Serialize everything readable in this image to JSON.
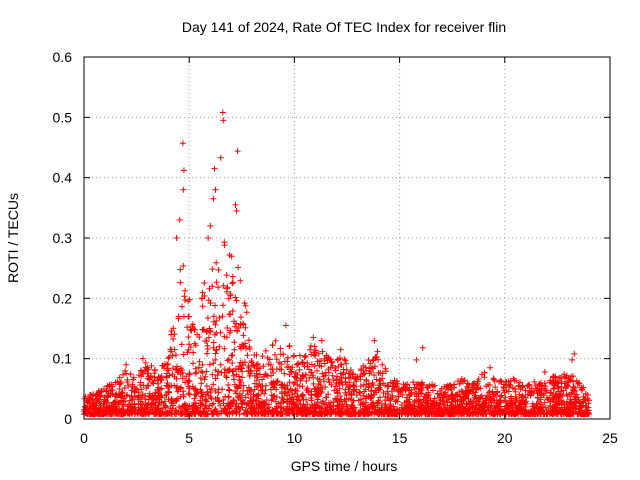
{
  "chart_data": {
    "type": "scatter",
    "title": "Day 141 of 2024, Rate Of TEC Index for receiver flin",
    "xlabel": "GPS time / hours",
    "ylabel": "ROTI / TECUs",
    "xlim": [
      0,
      25
    ],
    "ylim": [
      0,
      0.6
    ],
    "xticks": [
      0,
      5,
      10,
      15,
      20,
      25
    ],
    "xtick_labels": [
      "0",
      "5",
      "10",
      "15",
      "20",
      "25"
    ],
    "yticks": [
      0,
      0.1,
      0.2,
      0.3,
      0.4,
      0.5,
      0.6
    ],
    "ytick_labels": [
      "0",
      "0.1",
      "0.2",
      "0.3",
      "0.4",
      "0.5",
      "0.6"
    ],
    "grid": true,
    "marker": "+",
    "color": "#ff0000",
    "series": [
      {
        "name": "ROTI",
        "notable_points": [
          [
            4.7,
            0.457
          ],
          [
            4.75,
            0.412
          ],
          [
            4.72,
            0.38
          ],
          [
            4.55,
            0.33
          ],
          [
            6.6,
            0.508
          ],
          [
            6.62,
            0.495
          ],
          [
            6.5,
            0.433
          ],
          [
            7.3,
            0.444
          ],
          [
            6.2,
            0.415
          ],
          [
            6.25,
            0.38
          ],
          [
            6.15,
            0.365
          ],
          [
            7.2,
            0.355
          ],
          [
            7.25,
            0.345
          ],
          [
            6.0,
            0.32
          ],
          [
            5.9,
            0.3
          ],
          [
            4.4,
            0.3
          ],
          [
            9.6,
            0.155
          ],
          [
            10.9,
            0.135
          ],
          [
            11.3,
            0.13
          ],
          [
            13.8,
            0.13
          ],
          [
            16.1,
            0.118
          ],
          [
            15.8,
            0.098
          ],
          [
            19.3,
            0.085
          ],
          [
            21.9,
            0.078
          ],
          [
            22.4,
            0.07
          ],
          [
            23.2,
            0.098
          ],
          [
            23.3,
            0.108
          ],
          [
            2.0,
            0.09
          ],
          [
            2.8,
            0.1
          ],
          [
            12.2,
            0.115
          ]
        ],
        "envelope": {
          "x": [
            0,
            0.5,
            1,
            1.5,
            2,
            2.5,
            3,
            3.5,
            4,
            4.3,
            4.6,
            5.0,
            5.3,
            5.6,
            6.0,
            6.3,
            6.6,
            6.9,
            7.2,
            7.5,
            7.8,
            8.0,
            8.5,
            9,
            9.5,
            10,
            10.5,
            11,
            11.5,
            12,
            12.5,
            13,
            13.5,
            14,
            14.5,
            15,
            15.5,
            16,
            16.5,
            17,
            17.5,
            18,
            18.5,
            19,
            19.5,
            20,
            20.5,
            21,
            21.5,
            22,
            22.5,
            23,
            23.5,
            24
          ],
          "upper": [
            0.03,
            0.035,
            0.045,
            0.055,
            0.075,
            0.065,
            0.09,
            0.07,
            0.1,
            0.18,
            0.26,
            0.22,
            0.14,
            0.22,
            0.28,
            0.26,
            0.3,
            0.28,
            0.26,
            0.22,
            0.16,
            0.11,
            0.1,
            0.12,
            0.13,
            0.1,
            0.11,
            0.12,
            0.1,
            0.09,
            0.1,
            0.07,
            0.09,
            0.11,
            0.07,
            0.05,
            0.05,
            0.06,
            0.05,
            0.045,
            0.05,
            0.06,
            0.055,
            0.07,
            0.06,
            0.055,
            0.06,
            0.05,
            0.055,
            0.06,
            0.065,
            0.07,
            0.06,
            0.03
          ]
        }
      }
    ]
  }
}
